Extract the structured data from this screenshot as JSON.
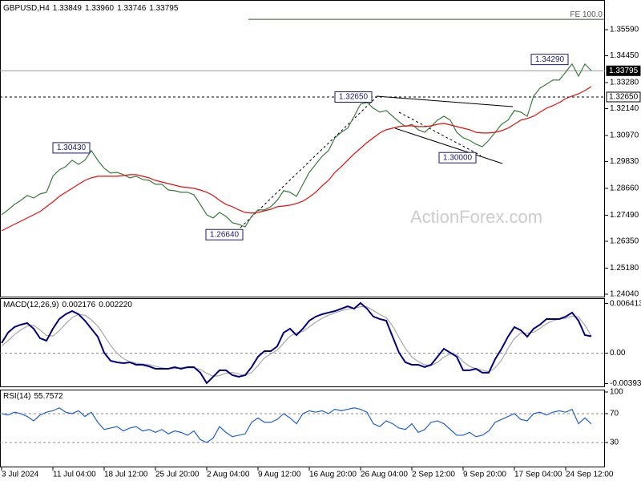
{
  "chart_data": {
    "type": "stock",
    "title": "GBPUSD,H4",
    "quote": [
      "1.33849",
      "1.33960",
      "1.33746",
      "1.33795"
    ],
    "watermark": "ActionForex.com",
    "categories": [
      "3 Jul 2024",
      null,
      null,
      null,
      null,
      null,
      null,
      null,
      "11 Jul 04:00",
      null,
      null,
      null,
      null,
      null,
      null,
      null,
      "18 Jul 12:00",
      null,
      null,
      null,
      null,
      null,
      null,
      null,
      "25 Jul 20:00",
      null,
      null,
      null,
      null,
      null,
      null,
      null,
      "2 Aug 04:00",
      null,
      null,
      null,
      null,
      null,
      null,
      null,
      "9 Aug 12:00",
      null,
      null,
      null,
      null,
      null,
      null,
      null,
      "16 Aug 20:00",
      null,
      null,
      null,
      null,
      null,
      null,
      null,
      "26 Aug 04:00",
      null,
      null,
      null,
      null,
      null,
      null,
      null,
      "2 Sep 12:00",
      null,
      null,
      null,
      null,
      null,
      null,
      null,
      "9 Sep 20:00",
      null,
      null,
      null,
      null,
      null,
      null,
      null,
      "17 Sep 04:00",
      null,
      null,
      null,
      null,
      null,
      null,
      null,
      "24 Sep 12:00",
      null,
      null,
      null,
      null
    ],
    "series": [
      {
        "color": "#3c7a3c",
        "values": [
          1.2751,
          1.2772,
          1.2796,
          1.2814,
          1.2835,
          1.2824,
          1.2842,
          1.2849,
          1.2919,
          1.2947,
          1.2961,
          1.2989,
          1.2971,
          1.2989,
          1.3031,
          1.2989,
          1.2954,
          1.2933,
          1.2936,
          1.2926,
          1.2912,
          1.2919,
          1.2905,
          1.2901,
          1.2884,
          1.2884,
          1.2859,
          1.2856,
          1.2849,
          1.2849,
          1.2838,
          1.2796,
          1.2751,
          1.2737,
          1.2761,
          1.2744,
          1.2716,
          1.2709,
          1.2698,
          1.2744,
          1.2772,
          1.2772,
          1.2786,
          1.2814,
          1.2856,
          1.2849,
          1.2831,
          1.2884,
          1.2936,
          1.2971,
          1.3006,
          1.3031,
          1.3087,
          1.3111,
          1.3129,
          1.3181,
          1.3234,
          1.3241,
          1.3216,
          1.3199,
          1.3206,
          1.3181,
          1.3157,
          1.3136,
          1.3146,
          1.3122,
          1.3111,
          1.3136,
          1.3164,
          1.3181,
          1.3164,
          1.3111,
          1.3087,
          1.3076,
          1.3059,
          1.3048,
          1.3076,
          1.3111,
          1.3146,
          1.3164,
          1.3206,
          1.3199,
          1.3181,
          1.3269,
          1.3304,
          1.3321,
          1.3339,
          1.3339,
          1.3374,
          1.3409,
          1.3356,
          1.3409,
          1.338
        ]
      },
      {
        "color": "#e01010",
        "values": [
          1.2681,
          1.2695,
          1.2709,
          1.2723,
          1.2737,
          1.2751,
          1.2765,
          1.2786,
          1.2807,
          1.2831,
          1.2849,
          1.2866,
          1.2884,
          1.2901,
          1.2912,
          1.2919,
          1.2919,
          1.2919,
          1.2919,
          1.2922,
          1.2926,
          1.2926,
          1.2919,
          1.2912,
          1.2901,
          1.2894,
          1.2887,
          1.288,
          1.2873,
          1.287,
          1.2866,
          1.2859,
          1.2849,
          1.2835,
          1.2814,
          1.2796,
          1.2786,
          1.2772,
          1.2761,
          1.2758,
          1.2761,
          1.2768,
          1.2775,
          1.2786,
          1.2789,
          1.2793,
          1.28,
          1.281,
          1.2828,
          1.2849,
          1.2877,
          1.2901,
          1.2936,
          1.2961,
          1.2989,
          1.3017,
          1.3041,
          1.3066,
          1.3087,
          1.3108,
          1.3122,
          1.3129,
          1.3136,
          1.3139,
          1.3139,
          1.3136,
          1.3136,
          1.3139,
          1.3146,
          1.315,
          1.3143,
          1.3136,
          1.3129,
          1.3122,
          1.3111,
          1.3108,
          1.3108,
          1.3111,
          1.3118,
          1.3129,
          1.3146,
          1.3164,
          1.3171,
          1.3181,
          1.3199,
          1.3216,
          1.3227,
          1.3241,
          1.3258,
          1.3269,
          1.3279,
          1.3293,
          1.3311
        ]
      }
    ],
    "ylim": [
      1.23935,
      1.36885
    ],
    "yticks": [
      {
        "value": 1.3559,
        "label": "1.35590"
      },
      {
        "value": 1.3445,
        "label": "1.34450"
      },
      {
        "value": 1.3328,
        "label": "1.33280"
      },
      {
        "value": 1.3214,
        "label": "1.32140"
      },
      {
        "value": 1.3097,
        "label": "1.30970"
      },
      {
        "value": 1.2983,
        "label": "1.29830"
      },
      {
        "value": 1.2866,
        "label": "1.28660"
      },
      {
        "value": 1.2749,
        "label": "1.27490"
      },
      {
        "value": 1.2635,
        "label": "1.26350"
      },
      {
        "value": 1.2518,
        "label": "1.25180"
      },
      {
        "value": 1.2404,
        "label": "1.24040"
      }
    ],
    "levels": [
      {
        "value": 1.33795,
        "label": "1.33795",
        "style": "current"
      },
      {
        "value": 1.3265,
        "label": "1.32650",
        "style": "dashed"
      }
    ],
    "fe": {
      "value": 1.3604,
      "label": "FE 100.0"
    },
    "annotations": [
      {
        "value": 1.3429,
        "label": "1.34290"
      },
      {
        "value": 1.3265,
        "label": "1.32650"
      },
      {
        "value": 1.3043,
        "label": "1.30430"
      },
      {
        "value": 1.3,
        "label": "1.30000"
      },
      {
        "value": 1.2664,
        "label": "1.26640"
      }
    ],
    "macd": {
      "title": "MACD(12,26,9)",
      "readout": [
        "0.002176",
        "0.002220"
      ],
      "ylim": [
        -0.0043,
        0.0071
      ],
      "yticks": [
        0.006413,
        {
          "value": 0,
          "label": "0.00"
        },
        -0.003938
      ],
      "series": [
        {
          "color": "#000080",
          "values": [
            0.0013,
            0.00265,
            0.00337,
            0.00368,
            0.00389,
            0.00316,
            0.00192,
            0.00161,
            0.00316,
            0.00441,
            0.00503,
            0.00544,
            0.00503,
            0.0042,
            0.00316,
            0.00213,
            6e-05,
            -0.00098,
            -0.00119,
            -0.00129,
            -0.00119,
            -0.0015,
            -0.0015,
            -0.00171,
            -0.00202,
            -0.00202,
            -0.00202,
            -0.00181,
            -0.00202,
            -0.00181,
            -0.00181,
            -0.00253,
            -0.00388,
            -0.00305,
            -0.00222,
            -0.00222,
            -0.00285,
            -0.00305,
            -0.00285,
            -0.00181,
            -0.00046,
            0.00026,
            0.00026,
            0.00088,
            0.00265,
            0.00316,
            0.00233,
            0.00316,
            0.0042,
            0.00472,
            0.00503,
            0.00524,
            0.00544,
            0.00575,
            0.00606,
            0.00575,
            0.00648,
            0.00575,
            0.00472,
            0.00441,
            0.0042,
            0.00213,
            6e-05,
            -0.00119,
            -0.0015,
            -0.0015,
            -0.00181,
            -0.0015,
            -0.00046,
            0.00057,
            6e-05,
            -0.00046,
            -0.00222,
            -0.00222,
            -0.00202,
            -0.00253,
            -0.00253,
            -0.00077,
            0.00057,
            0.00213,
            0.00337,
            0.00296,
            0.00213,
            0.00316,
            0.00368,
            0.00441,
            0.00441,
            0.00441,
            0.00472,
            0.00524,
            0.0042,
            0.00233,
            0.002176
          ]
        },
        {
          "color": "#a8a8a8",
          "values": [
            0.0009,
            0.0016,
            0.0024,
            0.003,
            0.0035,
            0.0036,
            0.003,
            0.0023,
            0.0022,
            0.0029,
            0.0038,
            0.0046,
            0.005,
            0.0049,
            0.0043,
            0.0035,
            0.0023,
            0.001,
            0,
            -0.0007,
            -0.0011,
            -0.0013,
            -0.0014,
            -0.0015,
            -0.0017,
            -0.0019,
            -0.002,
            -0.002,
            -0.0019,
            -0.0019,
            -0.0019,
            -0.0021,
            -0.0026,
            -0.003,
            -0.0029,
            -0.0026,
            -0.0025,
            -0.0027,
            -0.0029,
            -0.0025,
            -0.0016,
            -0.0006,
            -0.0001,
            0.0004,
            0.0013,
            0.0022,
            0.0026,
            0.0028,
            0.0034,
            0.004,
            0.0045,
            0.0049,
            0.0052,
            0.0055,
            0.0057,
            0.0058,
            0.006,
            0.006,
            0.0055,
            0.005,
            0.0046,
            0.0035,
            0.002,
            0.0006,
            -0.0005,
            -0.0011,
            -0.0015,
            -0.0016,
            -0.0012,
            -0.0005,
            -0.0001,
            -0.0002,
            -0.0011,
            -0.0017,
            -0.002,
            -0.0022,
            -0.0024,
            -0.0019,
            -0.0009,
            0.0006,
            0.0019,
            0.0026,
            0.0026,
            0.0027,
            0.0032,
            0.0038,
            0.0042,
            0.0044,
            0.0045,
            0.0048,
            0.0047,
            0.0036,
            0.00222
          ]
        }
      ]
    },
    "rsi": {
      "title": "RSI(14)",
      "readout": "55.7572",
      "ylim": [
        -3.4,
        103.3
      ],
      "yticks": [
        100,
        70,
        30
      ],
      "levels": [
        70,
        30
      ],
      "color": "#2060d0",
      "values": [
        70,
        68,
        72,
        70,
        66,
        60,
        68,
        72,
        74,
        78,
        72,
        70,
        74,
        66,
        72,
        58,
        48,
        50,
        52,
        46,
        50,
        52,
        46,
        48,
        44,
        48,
        42,
        46,
        44,
        40,
        46,
        34,
        30,
        36,
        52,
        44,
        38,
        40,
        42,
        58,
        64,
        58,
        58,
        62,
        70,
        64,
        56,
        70,
        74,
        72,
        74,
        70,
        76,
        74,
        76,
        78,
        76,
        72,
        56,
        52,
        60,
        56,
        50,
        48,
        56,
        44,
        48,
        58,
        60,
        56,
        48,
        40,
        40,
        44,
        38,
        40,
        46,
        58,
        62,
        66,
        70,
        62,
        60,
        70,
        72,
        68,
        72,
        74,
        72,
        76,
        56,
        64,
        55.7572
      ]
    }
  }
}
